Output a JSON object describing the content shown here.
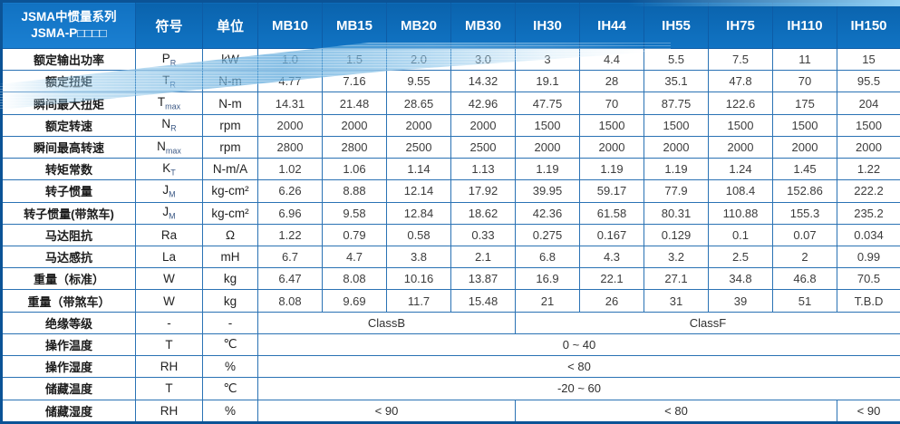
{
  "header": {
    "title_line1": "JSMA中惯量系列",
    "title_line2": "JSMA-P□□□□",
    "symbol_col": "符号",
    "unit_col": "单位",
    "models": [
      "MB10",
      "MB15",
      "MB20",
      "MB30",
      "IH30",
      "IH44",
      "IH55",
      "IH75",
      "IH110",
      "IH150"
    ]
  },
  "colors": {
    "header_blue": "#0e6cb8",
    "title_cell_blue": "#1579cd",
    "border_blue": "#2a72b4",
    "outer_border": "#0b5396",
    "wave_blue": "#7fc0e8"
  },
  "rows": [
    {
      "label": "额定输出功率",
      "symbol": "P",
      "sub": "R",
      "unit": "kW",
      "values": [
        "1.0",
        "1.5",
        "2.0",
        "3.0",
        "3",
        "4.4",
        "5.5",
        "7.5",
        "11",
        "15"
      ]
    },
    {
      "label": "额定扭矩",
      "symbol": "T",
      "sub": "R",
      "unit": "N-m",
      "values": [
        "4.77",
        "7.16",
        "9.55",
        "14.32",
        "19.1",
        "28",
        "35.1",
        "47.8",
        "70",
        "95.5"
      ]
    },
    {
      "label": "瞬间最大扭矩",
      "symbol": "T",
      "sub": "max",
      "unit": "N-m",
      "values": [
        "14.31",
        "21.48",
        "28.65",
        "42.96",
        "47.75",
        "70",
        "87.75",
        "122.6",
        "175",
        "204"
      ]
    },
    {
      "label": "额定转速",
      "symbol": "N",
      "sub": "R",
      "unit": "rpm",
      "values": [
        "2000",
        "2000",
        "2000",
        "2000",
        "1500",
        "1500",
        "1500",
        "1500",
        "1500",
        "1500"
      ]
    },
    {
      "label": "瞬间最高转速",
      "symbol": "N",
      "sub": "max",
      "unit": "rpm",
      "values": [
        "2800",
        "2800",
        "2500",
        "2500",
        "2000",
        "2000",
        "2000",
        "2000",
        "2000",
        "2000"
      ]
    },
    {
      "label": "转矩常数",
      "symbol": "K",
      "sub": "T",
      "unit": "N-m/A",
      "values": [
        "1.02",
        "1.06",
        "1.14",
        "1.13",
        "1.19",
        "1.19",
        "1.19",
        "1.24",
        "1.45",
        "1.22"
      ]
    },
    {
      "label": "转子惯量",
      "symbol": "J",
      "sub": "M",
      "unit": "kg-cm²",
      "values": [
        "6.26",
        "8.88",
        "12.14",
        "17.92",
        "39.95",
        "59.17",
        "77.9",
        "108.4",
        "152.86",
        "222.2"
      ]
    },
    {
      "label": "转子惯量(带煞车)",
      "symbol": "J",
      "sub": "M",
      "unit": "kg-cm²",
      "values": [
        "6.96",
        "9.58",
        "12.84",
        "18.62",
        "42.36",
        "61.58",
        "80.31",
        "110.88",
        "155.3",
        "235.2"
      ]
    },
    {
      "label": "马达阻抗",
      "symbol": "Ra",
      "sub": "",
      "unit": "Ω",
      "values": [
        "1.22",
        "0.79",
        "0.58",
        "0.33",
        "0.275",
        "0.167",
        "0.129",
        "0.1",
        "0.07",
        "0.034"
      ]
    },
    {
      "label": "马达感抗",
      "symbol": "La",
      "sub": "",
      "unit": "mH",
      "values": [
        "6.7",
        "4.7",
        "3.8",
        "2.1",
        "6.8",
        "4.3",
        "3.2",
        "2.5",
        "2",
        "0.99"
      ]
    },
    {
      "label": "重量（标准）",
      "symbol": "W",
      "sub": "",
      "unit": "kg",
      "values": [
        "6.47",
        "8.08",
        "10.16",
        "13.87",
        "16.9",
        "22.1",
        "27.1",
        "34.8",
        "46.8",
        "70.5"
      ]
    },
    {
      "label": "重量（带煞车）",
      "symbol": "W",
      "sub": "",
      "unit": "kg",
      "values": [
        "8.08",
        "9.69",
        "11.7",
        "15.48",
        "21",
        "26",
        "31",
        "39",
        "51",
        "T.B.D"
      ]
    },
    {
      "label": "绝缘等级",
      "symbol": "-",
      "sub": "",
      "unit": "-",
      "spans": [
        {
          "text": "ClassB",
          "cols": 4
        },
        {
          "text": "ClassF",
          "cols": 6
        }
      ]
    },
    {
      "label": "操作温度",
      "symbol": "T",
      "sub": "",
      "unit": "℃",
      "spans": [
        {
          "text": "0 ~ 40",
          "cols": 10
        }
      ]
    },
    {
      "label": "操作湿度",
      "symbol": "RH",
      "sub": "",
      "unit": "%",
      "spans": [
        {
          "text": "< 80",
          "cols": 10
        }
      ]
    },
    {
      "label": "储藏温度",
      "symbol": "T",
      "sub": "",
      "unit": "℃",
      "spans": [
        {
          "text": "-20 ~ 60",
          "cols": 10
        }
      ]
    },
    {
      "label": "储藏湿度",
      "symbol": "RH",
      "sub": "",
      "unit": "%",
      "spans": [
        {
          "text": "< 90",
          "cols": 4
        },
        {
          "text": "< 80",
          "cols": 5
        },
        {
          "text": "< 90",
          "cols": 1
        }
      ]
    }
  ]
}
